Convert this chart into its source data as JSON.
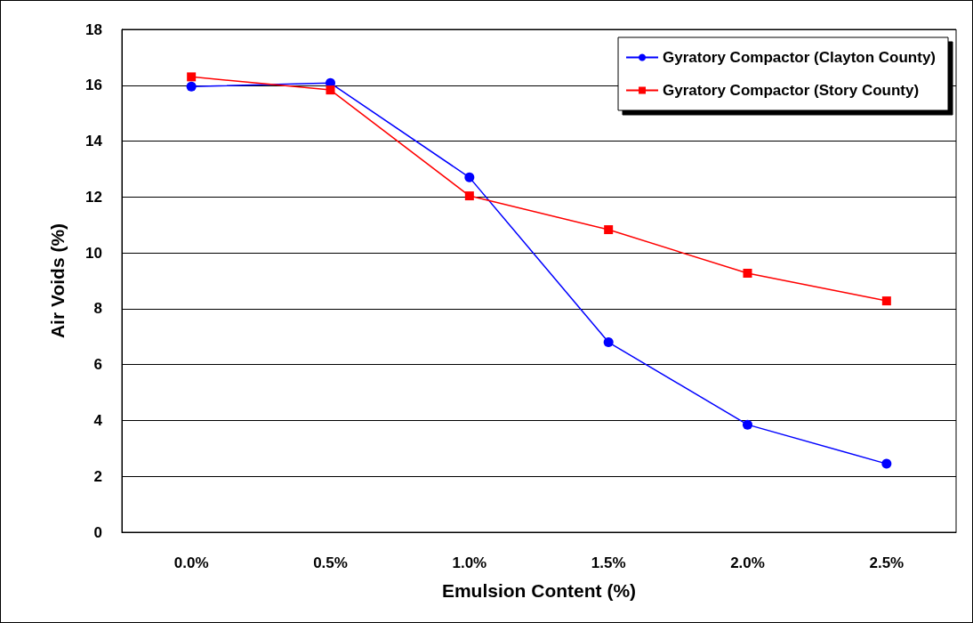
{
  "chart_data": {
    "type": "line",
    "xlabel": "Emulsion Content (%)",
    "ylabel": "Air Voids (%)",
    "categories": [
      "0.0%",
      "0.5%",
      "1.0%",
      "1.5%",
      "2.0%",
      "2.5%"
    ],
    "series": [
      {
        "name": "Gyratory Compactor (Clayton County)",
        "color": "#0000ff",
        "marker": "circle",
        "values": [
          15.95,
          16.08,
          12.7,
          6.8,
          3.85,
          2.45
        ]
      },
      {
        "name": "Gyratory Compactor (Story County)",
        "color": "#ff0000",
        "marker": "square",
        "values": [
          16.3,
          15.83,
          12.04,
          10.83,
          9.27,
          8.28
        ]
      }
    ],
    "ylim": [
      0,
      18
    ],
    "yticks": [
      0,
      2,
      4,
      6,
      8,
      10,
      12,
      14,
      16,
      18
    ],
    "grid": "y",
    "legend": "top right",
    "line_style": "solid"
  }
}
